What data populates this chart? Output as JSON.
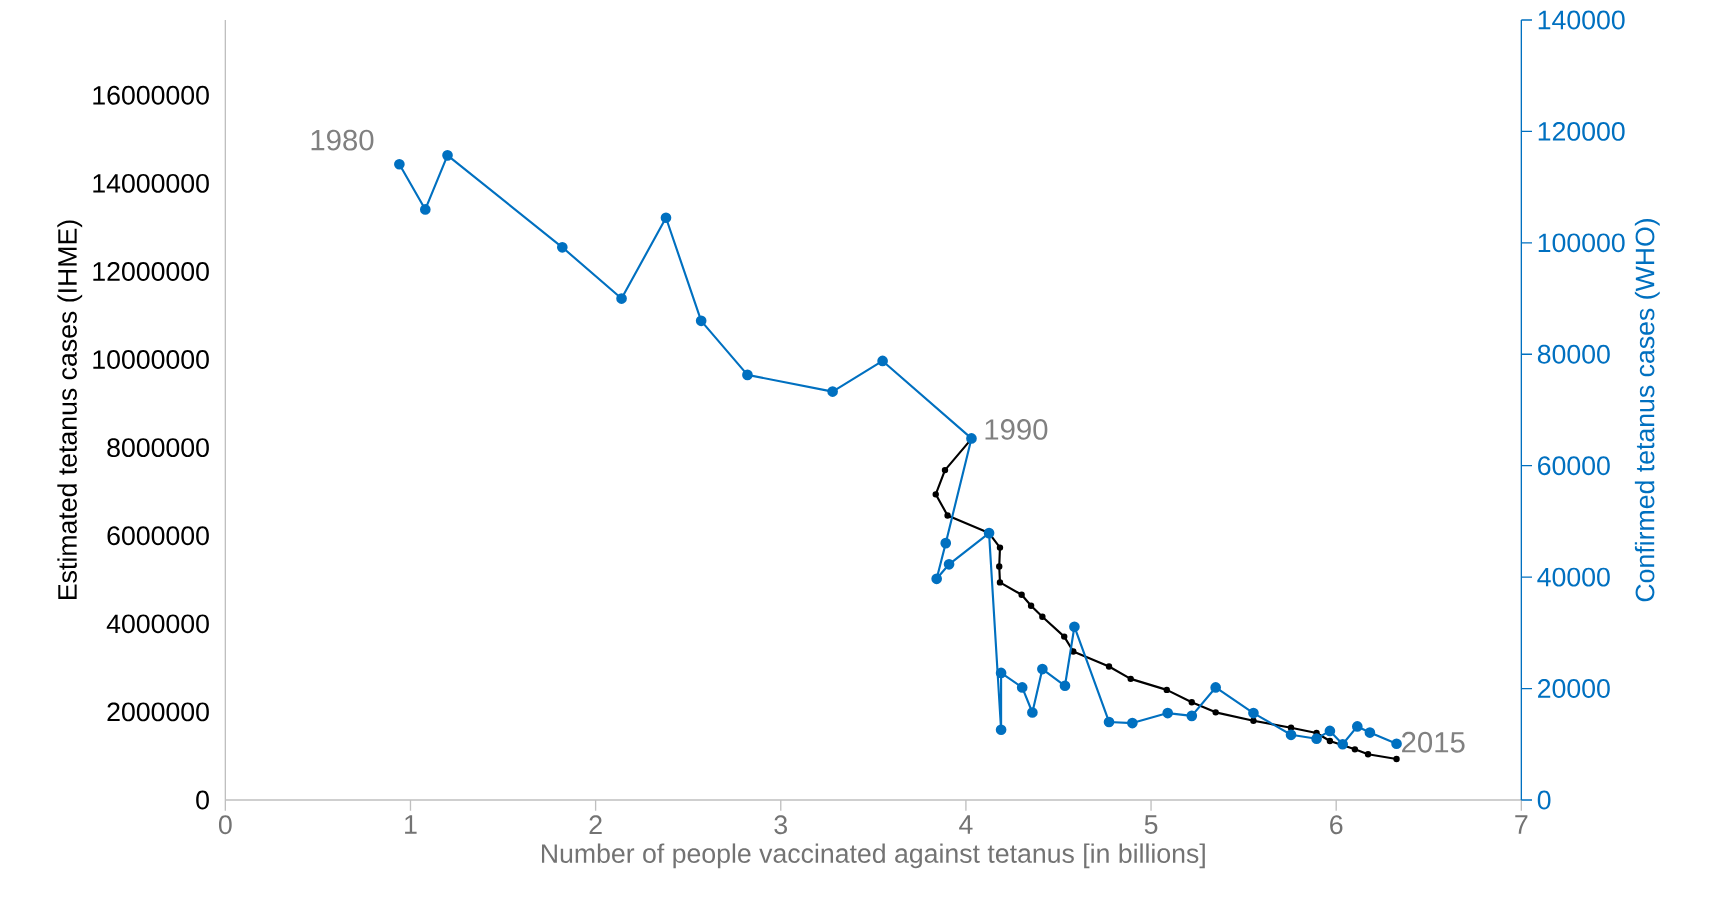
{
  "chart_data": {
    "type": "line",
    "xlabel": "Number of people vaccinated against tetanus [in billions]",
    "ylabel": "Estimated tetanus cases (IHME)",
    "y2label": "Confirmed tetanus cases (WHO)",
    "xlim": [
      0,
      7
    ],
    "xticks": [
      0,
      1,
      2,
      3,
      4,
      5,
      6,
      7
    ],
    "ylim": [
      0,
      17710000
    ],
    "yticks": [
      0,
      2000000,
      4000000,
      6000000,
      8000000,
      10000000,
      12000000,
      14000000,
      16000000
    ],
    "y2lim": [
      0,
      140000
    ],
    "y2ticks": [
      0,
      20000,
      40000,
      60000,
      80000,
      100000,
      120000,
      140000
    ],
    "marker": "circle",
    "line_style": "solid",
    "annotations": [
      "1980",
      "1990",
      "2015"
    ],
    "series": [
      {
        "color": "#000000",
        "x": [
          4.03,
          3.887,
          3.837,
          3.901,
          4.125,
          4.184,
          4.18,
          4.184,
          4.301,
          4.352,
          4.413,
          4.531,
          4.58,
          4.773,
          4.89,
          5.085,
          5.22,
          5.349,
          5.553,
          5.756,
          5.894,
          5.966,
          6.101,
          6.172,
          6.326
        ],
        "values": [
          8200000,
          7490000,
          6940000,
          6460000,
          6060000,
          5730000,
          5300000,
          4940000,
          4660000,
          4410000,
          4160000,
          3710000,
          3370000,
          3030000,
          2750000,
          2500000,
          2220000,
          1990000,
          1800000,
          1640000,
          1520000,
          1340000,
          1150000,
          1040000,
          930000
        ]
      },
      {
        "color": "#0070c0",
        "axis": "y2",
        "x": [
          0.94,
          1.08,
          1.2,
          1.82,
          2.14,
          2.38,
          2.57,
          2.82,
          3.28,
          3.55,
          4.03,
          3.891,
          3.842,
          3.909,
          4.125,
          4.19,
          4.19,
          4.304,
          4.359,
          4.413,
          4.535,
          4.586,
          4.773,
          4.899,
          5.09,
          5.22,
          5.349,
          5.553,
          5.756,
          5.894,
          5.966,
          6.035,
          6.114,
          6.182,
          6.326
        ],
        "values": [
          114100,
          106000,
          115700,
          99200,
          90000,
          104500,
          86000,
          76300,
          73300,
          78800,
          64900,
          46100,
          39700,
          42300,
          47900,
          12600,
          22800,
          20200,
          15700,
          23500,
          20500,
          31100,
          14000,
          13800,
          15600,
          15100,
          20200,
          15600,
          11700,
          11000,
          12400,
          10000,
          13200,
          12100,
          10100
        ]
      }
    ]
  }
}
